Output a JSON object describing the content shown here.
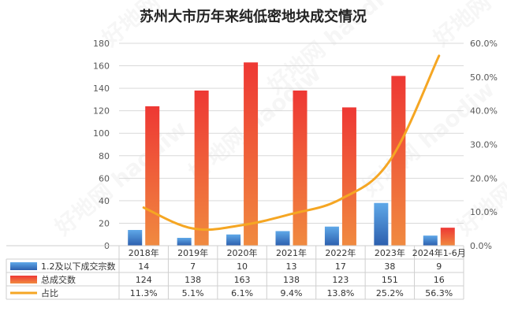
{
  "chart_data": {
    "type": "bar",
    "title": "苏州大市历年来纯低密地块成交情况",
    "categories": [
      "2018年",
      "2019年",
      "2020年",
      "2021年",
      "2022年",
      "2023年",
      "2024年1-6月"
    ],
    "series": [
      {
        "name": "1.2及以下成交宗数",
        "type": "bar",
        "axis": "left",
        "values": [
          14,
          7,
          10,
          13,
          17,
          38,
          9
        ],
        "color": "#4a8fd4"
      },
      {
        "name": "总成交数",
        "type": "bar",
        "axis": "left",
        "values": [
          124,
          138,
          163,
          138,
          123,
          151,
          16
        ],
        "color": "#ed4a3a"
      },
      {
        "name": "占比",
        "type": "line",
        "axis": "right",
        "values": [
          11.3,
          5.1,
          6.1,
          9.4,
          13.8,
          25.2,
          56.3
        ],
        "labels": [
          "11.3%",
          "5.1%",
          "6.1%",
          "9.4%",
          "13.8%",
          "25.2%",
          "56.3%"
        ],
        "color": "#f5a623"
      }
    ],
    "y_left": {
      "min": 0,
      "max": 180,
      "step": 20,
      "ticks": [
        "0",
        "20",
        "40",
        "60",
        "80",
        "100",
        "120",
        "140",
        "160",
        "180"
      ]
    },
    "y_right": {
      "min": 0,
      "max": 60,
      "step": 10,
      "ticks": [
        "0.0%",
        "10.0%",
        "20.0%",
        "30.0%",
        "40.0%",
        "50.0%",
        "60.0%"
      ]
    },
    "grid": true,
    "legend": "data-table-below",
    "watermark": "好地网 haodiw"
  }
}
